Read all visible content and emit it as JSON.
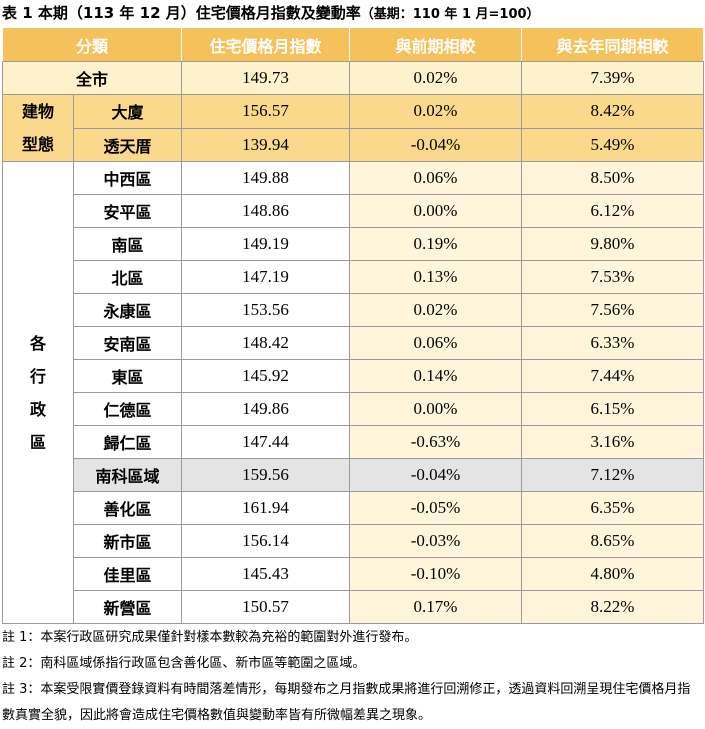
{
  "title": "表 1 本期（113 年 12 月）住宅價格月指數及變動率",
  "subtitle": "（基期：110 年 1 月=100）",
  "table": {
    "header": [
      "分類",
      "住宅價格月指數",
      "與前期相較",
      "與去年同期相較"
    ],
    "total": {
      "name": "全市",
      "values": [
        "149.73",
        "0.02%",
        "7.39%"
      ]
    },
    "groups": [
      {
        "label": "建物型態",
        "rows": [
          {
            "name": "大廈",
            "values": [
              "156.57",
              "0.02%",
              "8.42%"
            ]
          },
          {
            "name": "透天厝",
            "values": [
              "139.94",
              "-0.04%",
              "5.49%"
            ]
          }
        ]
      },
      {
        "label": "各行政區",
        "rows": [
          {
            "name": "中西區",
            "values": [
              "149.88",
              "0.06%",
              "8.50%"
            ]
          },
          {
            "name": "安平區",
            "values": [
              "148.86",
              "0.00%",
              "6.12%"
            ]
          },
          {
            "name": "南區",
            "values": [
              "149.19",
              "0.19%",
              "9.80%"
            ]
          },
          {
            "name": "北區",
            "values": [
              "147.19",
              "0.13%",
              "7.53%"
            ]
          },
          {
            "name": "永康區",
            "values": [
              "153.56",
              "0.02%",
              "7.56%"
            ]
          },
          {
            "name": "安南區",
            "values": [
              "148.42",
              "0.06%",
              "6.33%"
            ]
          },
          {
            "name": "東區",
            "values": [
              "145.92",
              "0.14%",
              "7.44%"
            ]
          },
          {
            "name": "仁德區",
            "values": [
              "149.86",
              "0.00%",
              "6.15%"
            ]
          },
          {
            "name": "歸仁區",
            "values": [
              "147.44",
              "-0.63%",
              "3.16%"
            ]
          },
          {
            "name": "南科區域",
            "values": [
              "159.56",
              "-0.04%",
              "7.12%"
            ],
            "highlight": true
          },
          {
            "name": "善化區",
            "values": [
              "161.94",
              "-0.05%",
              "6.35%"
            ]
          },
          {
            "name": "新市區",
            "values": [
              "156.14",
              "-0.03%",
              "8.65%"
            ]
          },
          {
            "name": "佳里區",
            "values": [
              "145.43",
              "-0.10%",
              "4.80%"
            ]
          },
          {
            "name": "新營區",
            "values": [
              "150.57",
              "0.17%",
              "8.22%"
            ]
          }
        ]
      }
    ]
  },
  "notes": [
    "註 1：本案行政區研究成果僅針對樣本數較為充裕的範圍對外進行發布。",
    "註 2：南科區域係指行政區包含善化區、新市區等範圍之區域。",
    "註 3：本案受限實價登錄資料有時間落差情形，每期發布之月指數成果將進行回溯修正，透過資料回溯呈現住宅價格月指數真實全貌，因此將會造成住宅價格數值與變動率皆有所微幅差異之現象。"
  ]
}
